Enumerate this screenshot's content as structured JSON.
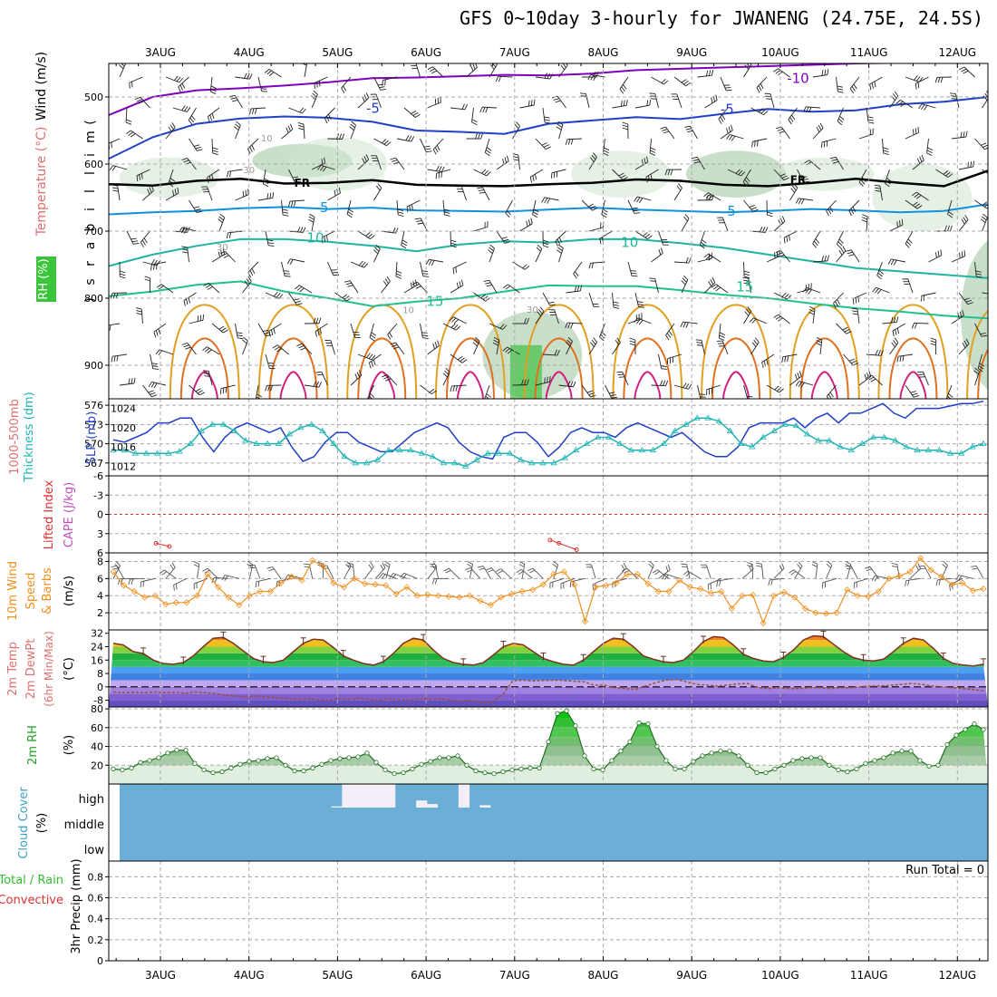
{
  "title": "GFS 0~10day 3-hourly for JWANENG (24.75E, 24.5S)",
  "colors": {
    "temperature": "#e07070",
    "wind_label": "#000000",
    "rh_label": "#3cb43c",
    "slp": "#1f3fc8",
    "thickness": "#20b4b4",
    "lifted": "#e03030",
    "cape": "#c050c0",
    "wind10m": "#f09020",
    "rh2m": "#20a020",
    "cloud_label": "#40a0c0",
    "cloud_fill": "#6baed6",
    "precip_total": "#30c030",
    "precip_conv": "#e03030"
  },
  "chart_data": [
    {
      "id": "upper-air",
      "type": "heatmap",
      "x_axis_dates": [
        "3AUG",
        "4AUG",
        "5AUG",
        "6AUG",
        "7AUG",
        "8AUG",
        "9AUG",
        "10AUG",
        "11AUG",
        "12AUG"
      ],
      "ylabel": "(millibars)",
      "ylabel_chars": [
        "(",
        "m",
        "i",
        "l",
        "l",
        "i",
        "b",
        "a",
        "r",
        "s",
        ")"
      ],
      "yticks": [
        500,
        600,
        700,
        800,
        900
      ],
      "ylim": [
        450,
        950
      ],
      "side_labels": {
        "wind": "Wind (m/s)",
        "temperature": "Temperature (°C)",
        "rh": "RH (%)"
      },
      "isotherm_labels": [
        {
          "text": "-5",
          "x_day": 2.4,
          "p": 517
        },
        {
          "text": "-10",
          "x_day": 7.2,
          "p": 472
        },
        {
          "text": "-5",
          "x_day": 6.4,
          "p": 518
        },
        {
          "text": "5",
          "x_day": 1.85,
          "p": 665
        },
        {
          "text": "5",
          "x_day": 6.45,
          "p": 670
        },
        {
          "text": "10",
          "x_day": 1.75,
          "p": 710
        },
        {
          "text": "10",
          "x_day": 5.3,
          "p": 717
        },
        {
          "text": "15",
          "x_day": 3.1,
          "p": 805
        },
        {
          "text": "15",
          "x_day": 6.6,
          "p": 783
        },
        {
          "text": "FR",
          "x_day": 1.6,
          "p": 627
        },
        {
          "text": "FR",
          "x_day": 7.2,
          "p": 622
        }
      ],
      "rh_labels": [
        {
          "text": "10",
          "x_day": 1.2,
          "p": 561
        },
        {
          "text": "30",
          "x_day": 1.0,
          "p": 608
        },
        {
          "text": "30",
          "x_day": 0.7,
          "p": 723
        },
        {
          "text": "10",
          "x_day": 2.8,
          "p": 817
        },
        {
          "text": "30",
          "x_day": 4.2,
          "p": 816
        }
      ],
      "isotherms": [
        {
          "level": -10,
          "color": "#8000c0",
          "points_p": [
            527,
            500,
            490,
            487,
            483,
            478,
            472,
            471,
            469,
            467,
            468,
            465,
            460,
            458,
            456,
            454,
            452,
            450,
            449,
            448,
            447
          ]
        },
        {
          "level": -5,
          "color": "#1f3fc8",
          "points_p": [
            592,
            560,
            540,
            532,
            529,
            531,
            537,
            550,
            552,
            555,
            540,
            535,
            530,
            533,
            525,
            518,
            522,
            520,
            511,
            507,
            500
          ]
        },
        {
          "level": 0,
          "color": "#000000",
          "points_p": [
            630,
            632,
            625,
            622,
            629,
            628,
            624,
            631,
            632,
            633,
            630,
            628,
            623,
            625,
            631,
            633,
            628,
            622,
            628,
            633,
            610
          ]
        },
        {
          "level": 5,
          "color": "#1090e0",
          "points_p": [
            675,
            672,
            670,
            666,
            664,
            667,
            665,
            669,
            670,
            671,
            668,
            665,
            668,
            670,
            672,
            670,
            667,
            669,
            672,
            670,
            660
          ]
        },
        {
          "level": 10,
          "color": "#20b4a0",
          "points_p": [
            752,
            735,
            722,
            712,
            712,
            716,
            722,
            730,
            720,
            715,
            717,
            712,
            712,
            718,
            725,
            735,
            745,
            755,
            760,
            765,
            770
          ]
        },
        {
          "level": 15,
          "color": "#20c090",
          "points_p": [
            797,
            790,
            780,
            775,
            790,
            800,
            812,
            805,
            800,
            790,
            781,
            782,
            782,
            788,
            795,
            800,
            808,
            815,
            820,
            826,
            830
          ]
        }
      ],
      "warm_columns_day": [
        0.5,
        1.5,
        2.5,
        3.5,
        4.5,
        5.5,
        6.5,
        7.5,
        8.5,
        9.5
      ],
      "rh_blobs": [
        {
          "day": 0.1,
          "p0": 590,
          "p1": 650,
          "level": 1
        },
        {
          "day": 1.6,
          "p0": 570,
          "p1": 620,
          "level": 2
        },
        {
          "day": 2.0,
          "p0": 560,
          "p1": 640,
          "level": 1
        },
        {
          "day": 4.2,
          "p0": 820,
          "p1": 950,
          "level": 2
        },
        {
          "day": 5.2,
          "p0": 580,
          "p1": 650,
          "level": 1
        },
        {
          "day": 6.5,
          "p0": 580,
          "p1": 650,
          "level": 2
        },
        {
          "day": 7.5,
          "p0": 590,
          "p1": 640,
          "level": 1
        },
        {
          "day": 8.6,
          "p0": 600,
          "p1": 700,
          "level": 1
        },
        {
          "day": 9.6,
          "p0": 700,
          "p1": 950,
          "level": 2
        }
      ]
    },
    {
      "id": "slp-thickness",
      "type": "line",
      "left_label_lines": [
        "1000-500mb",
        "Thickness (dm)"
      ],
      "right_label": "SLP (mb)",
      "left_yticks": [
        576,
        573,
        570,
        567
      ],
      "left_ylim": [
        565,
        577
      ],
      "right_yticks": [
        1024,
        1020,
        1016,
        1012
      ],
      "right_ylim": [
        1010,
        1026
      ],
      "series": [
        {
          "name": "SLP (mb)",
          "axis": "right",
          "values": [
            1017.5,
            1017,
            1018,
            1019,
            1021,
            1021,
            1022,
            1022,
            1018,
            1015,
            1018,
            1020,
            1021,
            1020,
            1019,
            1020,
            1016,
            1013,
            1014,
            1017,
            1019,
            1019,
            1017,
            1016,
            1015,
            1015,
            1017,
            1019,
            1020,
            1021,
            1020,
            1017,
            1015,
            1014,
            1013.5,
            1018,
            1019,
            1019,
            1017,
            1014,
            1016,
            1019,
            1020,
            1019,
            1019,
            1018,
            1020,
            1021,
            1020,
            1019,
            1018,
            1019,
            1017,
            1015,
            1014,
            1014,
            1016,
            1020,
            1021,
            1021,
            1021,
            1022,
            1020,
            1022,
            1023,
            1021,
            1023,
            1023,
            1024,
            1025,
            1023,
            1022,
            1024,
            1024,
            1024,
            1024.5,
            1025,
            1025,
            1025.5
          ]
        },
        {
          "name": "Thickness",
          "axis": "left",
          "values": [
            569,
            569,
            568.5,
            568.5,
            568.5,
            568.5,
            568.8,
            570,
            572,
            573,
            573,
            572,
            570.5,
            570,
            570,
            570,
            571.5,
            572.5,
            573,
            572,
            570,
            568,
            567,
            567,
            567.5,
            569,
            569,
            569,
            568.5,
            568,
            567,
            567,
            566.5,
            567.5,
            568.5,
            568.5,
            568.5,
            567.5,
            567,
            567,
            567,
            567.8,
            569,
            570,
            571,
            571,
            570,
            569,
            569,
            569,
            570,
            572,
            573,
            574,
            574,
            573.5,
            572,
            570,
            569.5,
            571,
            572,
            573,
            572.8,
            571.5,
            570.5,
            570.5,
            569.5,
            569,
            570,
            571,
            571,
            570.5,
            569.5,
            569,
            569,
            569,
            568.5,
            568.5,
            569.5,
            570
          ]
        }
      ]
    },
    {
      "id": "lifted-cape",
      "type": "line",
      "left_label": "Lifted Index",
      "right_label": "CAPE (J/kg)",
      "yticks": [
        -6,
        -3,
        0,
        3,
        6
      ],
      "ytick_labels": [
        "-6",
        "-3",
        "0",
        "3",
        "6"
      ],
      "ylim": [
        -6,
        6
      ],
      "series": [
        {
          "name": "Lifted Index",
          "values": [
            {
              "x_day": -0.05,
              "y": 4.5
            },
            {
              "x_day": 0.1,
              "y": 5.0
            },
            {
              "x_day": 4.4,
              "y": 4.0
            },
            {
              "x_day": 4.5,
              "y": 4.5
            },
            {
              "x_day": 4.7,
              "y": 5.5
            }
          ]
        }
      ]
    },
    {
      "id": "wind10m",
      "type": "line",
      "left_label_lines": [
        "10m Wind",
        "Speed",
        "& Barbs"
      ],
      "unit_label": "(m/s)",
      "yticks": [
        2,
        4,
        6,
        8
      ],
      "ylim": [
        0,
        9
      ],
      "values": [
        6.8,
        5.2,
        4.5,
        3.8,
        4.0,
        3.0,
        3.2,
        3.2,
        4.0,
        6.5,
        5.0,
        3.8,
        2.9,
        4.0,
        4.5,
        4.5,
        5.5,
        6.2,
        5.8,
        8.1,
        7.5,
        5.5,
        5.0,
        6.0,
        5.4,
        5.3,
        5.2,
        4.2,
        5.0,
        4.0,
        4.1,
        4.0,
        3.9,
        3.8,
        4.0,
        3.4,
        2.9,
        3.8,
        4.2,
        4.5,
        4.7,
        5.3,
        6.5,
        6.8,
        5.3,
        1.0,
        5.0,
        5.2,
        5.5,
        6.5,
        6.5,
        5.4,
        4.5,
        4.5,
        5.8,
        5.0,
        4.8,
        4.3,
        4.5,
        2.5,
        4.0,
        4.1,
        0.8,
        4.0,
        4.4,
        3.8,
        2.5,
        2.0,
        1.9,
        2.0,
        4.7,
        4.0,
        3.9,
        4.5,
        6.0,
        6.3,
        6.8,
        8.4,
        7.0,
        6.2,
        5.3,
        5.5,
        4.6,
        4.8
      ]
    },
    {
      "id": "temp-dewpt",
      "type": "area",
      "left_label_lines": [
        "2m Temp",
        "2m DewPt",
        "(6hr Min/Max)"
      ],
      "unit_label": "(°C)",
      "yticks": [
        32,
        24,
        16,
        8,
        0,
        -8
      ],
      "ylim": [
        -12,
        34
      ],
      "temp_values": [
        26.0,
        25.0,
        21.0,
        20.0,
        16.0,
        14.0,
        13.5,
        14.5,
        18.5,
        24.0,
        29.0,
        29.5,
        26.0,
        21.5,
        17.0,
        15.0,
        14.5,
        16.0,
        21.0,
        26.0,
        28.5,
        28.0,
        23.5,
        18.5,
        16.0,
        14.0,
        13.0,
        15.0,
        20.0,
        26.0,
        29.0,
        28.0,
        22.0,
        17.0,
        14.5,
        13.5,
        13.0,
        14.5,
        19.0,
        24.0,
        26.0,
        25.0,
        21.0,
        17.0,
        15.0,
        13.5,
        13.0,
        16.0,
        21.0,
        26.0,
        29.0,
        28.5,
        24.0,
        18.5,
        16.5,
        15.0,
        14.5,
        16.0,
        21.0,
        27.0,
        30.0,
        29.5,
        25.0,
        19.5,
        17.0,
        15.5,
        15.0,
        17.5,
        22.0,
        28.0,
        30.5,
        30.0,
        25.5,
        21.0,
        17.5,
        16.0,
        15.5,
        16.5,
        21.0,
        26.0,
        29.0,
        28.0,
        23.0,
        17.0,
        14.0,
        13.0,
        12.5,
        13.5
      ],
      "dew_values": [
        -3,
        -3.5,
        -3.2,
        -3.5,
        -3,
        -3.5,
        -3.2,
        -3.8,
        -3,
        -3.5,
        -4,
        -5,
        -5.5,
        -6,
        -5.5,
        -6,
        -6.5,
        -7,
        -7.5,
        -7,
        -7.8,
        -8,
        -7,
        -7.5,
        -6.8,
        -7.5,
        -8,
        -7,
        -7.8,
        -7.8,
        -7,
        -7.5,
        -7.2,
        -8,
        -8.5,
        -8,
        -9.5,
        -9,
        -5,
        3.5,
        4,
        3.5,
        3.8,
        4,
        3.8,
        3.3,
        3,
        1,
        1,
        -0.5,
        -1,
        -1.5,
        0.5,
        2.5,
        4,
        4.5,
        3,
        1.5,
        1,
        0.5,
        1,
        1.8,
        2,
        -0.5,
        -1,
        -0.5,
        -1,
        -1,
        -0.5,
        -0.5,
        -1,
        -0.5,
        -0.5,
        0,
        0.5,
        0.5,
        1,
        1.5,
        2,
        1.5,
        0.5,
        0,
        -0.5,
        -1,
        -1.5,
        -2.5
      ]
    },
    {
      "id": "rh2m",
      "type": "area",
      "left_label": "2m RH",
      "unit_label": "(%)",
      "yticks": [
        20,
        40,
        60,
        80
      ],
      "ylim": [
        0,
        82
      ],
      "values": [
        16,
        15,
        17,
        23,
        25,
        28,
        33,
        36,
        36,
        22,
        15,
        12,
        13,
        17,
        21,
        24,
        25,
        27,
        28,
        20,
        14,
        14,
        17,
        21,
        25,
        27,
        28,
        29,
        33,
        23,
        15,
        11,
        12,
        16,
        21,
        24,
        28,
        28,
        30,
        20,
        14,
        12,
        11,
        13,
        15,
        16,
        17,
        17,
        45,
        75,
        78,
        62,
        30,
        16,
        15,
        25,
        35,
        45,
        65,
        64,
        40,
        25,
        16,
        16,
        24,
        30,
        33,
        35,
        35,
        30,
        20,
        12,
        12,
        16,
        20,
        25,
        27,
        28,
        28,
        20,
        15,
        13,
        16,
        22,
        25,
        28,
        33,
        35,
        35,
        25,
        19,
        20,
        42,
        52,
        58,
        64,
        58
      ]
    },
    {
      "id": "cloud",
      "type": "bar",
      "left_label": "Cloud Cover",
      "unit_label": "(%)",
      "level_labels": [
        "high",
        "middle",
        "low"
      ],
      "high_values": [
        0,
        0,
        0,
        0,
        0,
        0,
        0,
        0,
        0,
        0,
        0,
        0,
        0,
        0,
        0,
        0,
        0,
        0,
        0,
        0,
        5,
        100,
        100,
        100,
        100,
        100,
        0,
        0,
        30,
        15,
        0,
        0,
        100,
        0,
        10,
        0,
        0,
        0,
        0,
        0,
        0,
        0,
        0,
        0,
        0,
        0,
        0,
        0,
        0,
        0,
        0,
        0,
        0,
        0,
        0,
        0,
        0,
        0,
        0,
        0,
        0,
        0,
        0,
        0,
        0,
        0,
        0,
        0,
        0,
        0,
        0,
        0,
        0,
        0,
        0,
        0,
        0,
        0,
        0,
        0,
        0,
        0
      ]
    },
    {
      "id": "precip",
      "type": "bar",
      "left_label_lines": [
        "Total / Rain",
        "Convective"
      ],
      "right_axis_label": "3hr Precip (mm)",
      "yticks": [
        0,
        0.2,
        0.4,
        0.6,
        0.8
      ],
      "ylim": [
        0,
        0.95
      ],
      "run_total": "Run Total = 0",
      "values": []
    }
  ]
}
